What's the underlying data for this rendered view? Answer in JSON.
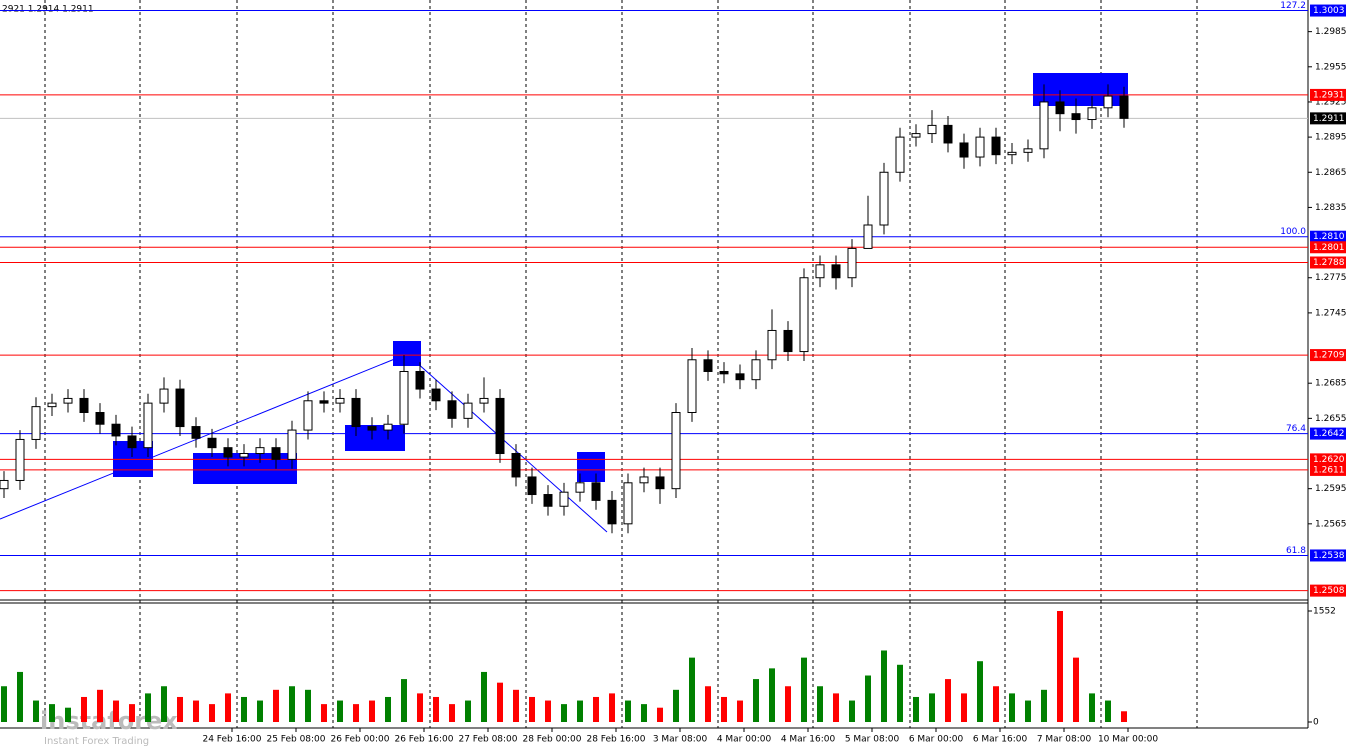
{
  "chart_data": {
    "type": "candlestick",
    "header": "2921 1.2914 1.2911",
    "ylim": [
      1.25,
      1.3012
    ],
    "yticks": [
      1.2985,
      1.2955,
      1.2925,
      1.2895,
      1.2865,
      1.2835,
      1.2775,
      1.2745,
      1.2685,
      1.2655,
      1.2595,
      1.2565
    ],
    "open": [
      1.2595,
      1.2602,
      1.2637,
      1.2665,
      1.2668,
      1.2672,
      1.266,
      1.265,
      1.264,
      1.263,
      1.2668,
      1.268,
      1.2648,
      1.2638,
      1.263,
      1.2622,
      1.2625,
      1.263,
      1.262,
      1.2645,
      1.267,
      1.2668,
      1.2672,
      1.2648,
      1.2645,
      1.265,
      1.2695,
      1.268,
      1.267,
      1.2655,
      1.2668,
      1.2672,
      1.2625,
      1.2605,
      1.259,
      1.258,
      1.2592,
      1.26,
      1.2585,
      1.2565,
      1.26,
      1.2605,
      1.2595,
      1.266,
      1.2705,
      1.2695,
      1.2693,
      1.2688,
      1.2705,
      1.273,
      1.2712,
      1.2775,
      1.2786,
      1.2775,
      1.28,
      1.282,
      1.2865,
      1.2895,
      1.2898,
      1.2905,
      1.289,
      1.2878,
      1.2895,
      1.288,
      1.2882,
      1.2885,
      1.2925,
      1.2915,
      1.291,
      1.292,
      1.293
    ],
    "high": [
      1.261,
      1.2645,
      1.2673,
      1.2676,
      1.268,
      1.268,
      1.2668,
      1.2658,
      1.2648,
      1.2676,
      1.269,
      1.2688,
      1.2656,
      1.2646,
      1.2638,
      1.2633,
      1.2638,
      1.2638,
      1.2653,
      1.2678,
      1.2678,
      1.268,
      1.268,
      1.2656,
      1.2658,
      1.2709,
      1.2703,
      1.2688,
      1.2678,
      1.2676,
      1.269,
      1.268,
      1.2633,
      1.2613,
      1.2598,
      1.26,
      1.2608,
      1.2608,
      1.2593,
      1.2608,
      1.2613,
      1.2613,
      1.2668,
      1.2715,
      1.2713,
      1.2703,
      1.2701,
      1.2713,
      1.2748,
      1.2738,
      1.2783,
      1.2794,
      1.2794,
      1.2808,
      1.2845,
      1.2873,
      1.2903,
      1.2906,
      1.2918,
      1.2913,
      1.2898,
      1.2903,
      1.2903,
      1.289,
      1.2893,
      1.294,
      1.2935,
      1.2928,
      1.293,
      1.294,
      1.2938
    ],
    "low": [
      1.2587,
      1.2594,
      1.2629,
      1.2657,
      1.266,
      1.2652,
      1.2642,
      1.2632,
      1.2622,
      1.2622,
      1.266,
      1.264,
      1.263,
      1.2622,
      1.2614,
      1.2614,
      1.2617,
      1.2612,
      1.2612,
      1.2637,
      1.266,
      1.266,
      1.264,
      1.2637,
      1.2637,
      1.2642,
      1.2672,
      1.2662,
      1.2647,
      1.2647,
      1.266,
      1.2617,
      1.2597,
      1.2582,
      1.2572,
      1.2572,
      1.2584,
      1.2577,
      1.2557,
      1.2557,
      1.2592,
      1.2582,
      1.2587,
      1.2652,
      1.2687,
      1.2685,
      1.268,
      1.268,
      1.2697,
      1.2704,
      1.2704,
      1.2767,
      1.2765,
      1.2767,
      1.28,
      1.2812,
      1.2857,
      1.2887,
      1.289,
      1.2882,
      1.2868,
      1.287,
      1.2872,
      1.2872,
      1.2874,
      1.2877,
      1.29,
      1.2898,
      1.2902,
      1.2912,
      1.2903
    ],
    "close": [
      1.2602,
      1.2637,
      1.2665,
      1.2668,
      1.2672,
      1.266,
      1.265,
      1.264,
      1.263,
      1.2668,
      1.268,
      1.2648,
      1.2638,
      1.263,
      1.2622,
      1.2625,
      1.263,
      1.262,
      1.2645,
      1.267,
      1.2668,
      1.2672,
      1.2648,
      1.2645,
      1.265,
      1.2695,
      1.268,
      1.267,
      1.2655,
      1.2668,
      1.2672,
      1.2625,
      1.2605,
      1.259,
      1.258,
      1.2592,
      1.26,
      1.2585,
      1.2565,
      1.26,
      1.2605,
      1.2595,
      1.266,
      1.2705,
      1.2695,
      1.2693,
      1.2688,
      1.2705,
      1.273,
      1.2712,
      1.2775,
      1.2786,
      1.2775,
      1.28,
      1.282,
      1.2865,
      1.2895,
      1.2898,
      1.2905,
      1.289,
      1.2878,
      1.2895,
      1.288,
      1.2882,
      1.2885,
      1.2925,
      1.2915,
      1.291,
      1.292,
      1.293,
      1.2911
    ],
    "volume": [
      500,
      700,
      300,
      250,
      200,
      350,
      450,
      300,
      250,
      400,
      500,
      350,
      300,
      250,
      400,
      350,
      300,
      450,
      500,
      450,
      250,
      300,
      250,
      300,
      350,
      600,
      400,
      350,
      250,
      300,
      700,
      550,
      450,
      350,
      300,
      250,
      300,
      350,
      400,
      300,
      250,
      200,
      450,
      900,
      500,
      350,
      300,
      600,
      750,
      500,
      900,
      500,
      400,
      300,
      650,
      1000,
      800,
      350,
      400,
      600,
      400,
      850,
      500,
      400,
      300,
      450,
      1552,
      900,
      400,
      300,
      150
    ],
    "volume_lim": [
      0,
      1552
    ],
    "volume_ticks": [
      1552,
      0
    ],
    "up_color": "#008000",
    "down_color": "#ff0000",
    "levels": [
      {
        "price": 1.3003,
        "color": "#0000ff",
        "fib": 127.2
      },
      {
        "price": 1.2931,
        "color": "#ff0000"
      },
      {
        "price": {
          "value": 1.281,
          "label": "1.2810"
        },
        "color": "#0000ff",
        "fib": {
          "value": 100,
          "label": "100.0"
        }
      },
      {
        "price": 1.2801,
        "color": "#ff0000"
      },
      {
        "price": 1.2788,
        "color": "#ff0000"
      },
      {
        "price": 1.2709,
        "color": "#ff0000"
      },
      {
        "price": 1.2642,
        "color": "#0000ff",
        "fib": 76.4
      },
      {
        "price": {
          "value": 1.262,
          "label": "1.2620"
        },
        "color": "#ff0000"
      },
      {
        "price": 1.2611,
        "color": "#ff0000"
      },
      {
        "price": 1.2538,
        "color": "#0000ff",
        "fib": 61.8
      },
      {
        "price": 1.2508,
        "color": "#ff0000"
      }
    ],
    "current_price": 1.2911,
    "x_labels": [
      "24 Feb 16:00",
      "25 Feb 08:00",
      "26 Feb 00:00",
      "26 Feb 16:00",
      "27 Feb 08:00",
      "28 Feb 00:00",
      "28 Feb 16:00",
      "3 Mar 08:00",
      "4 Mar 00:00",
      "4 Mar 16:00",
      "5 Mar 08:00",
      "6 Mar 00:00",
      "6 Mar 16:00",
      "7 Mar 08:00",
      "10 Mar 00:00"
    ],
    "watermark": {
      "name": "instaforex",
      "tagline": "Instant Forex Trading"
    }
  }
}
